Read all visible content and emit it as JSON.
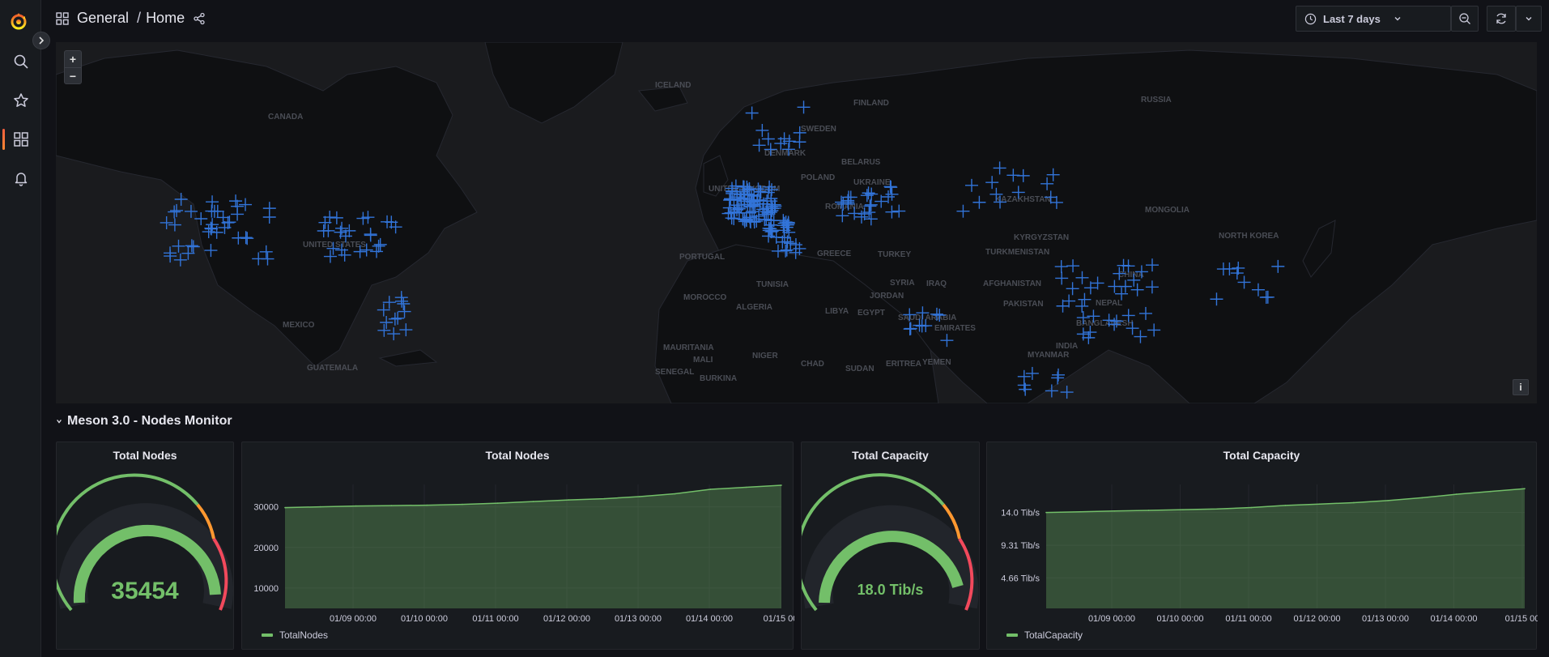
{
  "breadcrumb": {
    "folder": "General",
    "separator": "/",
    "dashboard": "Home"
  },
  "toolbar": {
    "time_range": "Last 7 days"
  },
  "sidebar": {
    "items": [
      {
        "icon": "search-icon"
      },
      {
        "icon": "star-icon"
      },
      {
        "icon": "dashboards-icon",
        "active": true
      },
      {
        "icon": "bell-icon"
      }
    ]
  },
  "map": {
    "zoom_in": "+",
    "zoom_out": "−",
    "info": "i",
    "labels": [
      {
        "text": "ICELAND"
      },
      {
        "text": "FINLAND"
      },
      {
        "text": "SWEDEN"
      },
      {
        "text": "RUSSIA"
      },
      {
        "text": "CANADA"
      },
      {
        "text": "UNITED KINGDOM"
      },
      {
        "text": "DENMARK"
      },
      {
        "text": "BELARUS"
      },
      {
        "text": "POLAND"
      },
      {
        "text": "UKRAINE"
      },
      {
        "text": "KAZAKHSTAN"
      },
      {
        "text": "MONGOLIA"
      },
      {
        "text": "ROMANIA"
      },
      {
        "text": "UNITED STATES"
      },
      {
        "text": "KYRGYZSTAN"
      },
      {
        "text": "TURKMENISTAN"
      },
      {
        "text": "TURKEY"
      },
      {
        "text": "GREECE"
      },
      {
        "text": "PORTUGAL"
      },
      {
        "text": "NORTH KOREA"
      },
      {
        "text": "CHINA"
      },
      {
        "text": "TUNISIA"
      },
      {
        "text": "SYRIA"
      },
      {
        "text": "IRAQ"
      },
      {
        "text": "AFGHANISTAN"
      },
      {
        "text": "JORDAN"
      },
      {
        "text": "MOROCCO"
      },
      {
        "text": "PAKISTAN"
      },
      {
        "text": "NEPAL"
      },
      {
        "text": "ALGERIA"
      },
      {
        "text": "LIBYA"
      },
      {
        "text": "EGYPT"
      },
      {
        "text": "SAUDI ARABIA"
      },
      {
        "text": "BANGLADESH"
      },
      {
        "text": "MEXICO"
      },
      {
        "text": "EMIRATES"
      },
      {
        "text": "INDIA"
      },
      {
        "text": "MAURITANIA"
      },
      {
        "text": "MALI"
      },
      {
        "text": "NIGER"
      },
      {
        "text": "CHAD"
      },
      {
        "text": "SUDAN"
      },
      {
        "text": "ERITREA"
      },
      {
        "text": "YEMEN"
      },
      {
        "text": "MYANMAR"
      },
      {
        "text": "GUATEMALA"
      },
      {
        "text": "SENEGAL"
      },
      {
        "text": "BURKINA"
      }
    ]
  },
  "row": {
    "title": "Meson 3.0 - Nodes Monitor"
  },
  "panels": {
    "nodes_gauge": {
      "title": "Total Nodes",
      "value": "35454"
    },
    "nodes_chart": {
      "title": "Total Nodes",
      "legend": "TotalNodes"
    },
    "capacity_gauge": {
      "title": "Total Capacity",
      "value": "18.0 Tib/s"
    },
    "capacity_chart": {
      "title": "Total Capacity",
      "legend": "TotalCapacity"
    }
  },
  "colors": {
    "series": "#73bf69",
    "marker": "#3274d9",
    "gauge_warn": "#ff9830",
    "gauge_crit": "#f2495c"
  },
  "chart_data": [
    {
      "type": "area",
      "title": "Total Nodes",
      "series": [
        {
          "name": "TotalNodes",
          "x": [
            "01/08 12:00",
            "01/09 00:00",
            "01/09 12:00",
            "01/10 00:00",
            "01/10 12:00",
            "01/11 00:00",
            "01/11 12:00",
            "01/12 00:00",
            "01/12 12:00",
            "01/13 00:00",
            "01/13 12:00",
            "01/14 00:00",
            "01/14 12:00",
            "01/15 00:00",
            "01/15 06:00"
          ],
          "values": [
            29800,
            30000,
            30200,
            30300,
            30400,
            30600,
            30900,
            31300,
            31700,
            32000,
            32500,
            33200,
            34300,
            34800,
            35300
          ]
        }
      ],
      "x_ticks": [
        "01/09 00:00",
        "01/10 00:00",
        "01/11 00:00",
        "01/12 00:00",
        "01/13 00:00",
        "01/14 00:00",
        "01/15 00"
      ],
      "y_ticks": [
        "10000",
        "20000",
        "30000"
      ],
      "ylim": [
        5000,
        35500
      ]
    },
    {
      "type": "area",
      "title": "Total Capacity",
      "series": [
        {
          "name": "TotalCapacity",
          "x": [
            "01/08 12:00",
            "01/09 00:00",
            "01/09 12:00",
            "01/10 00:00",
            "01/10 12:00",
            "01/11 00:00",
            "01/11 12:00",
            "01/12 00:00",
            "01/12 12:00",
            "01/13 00:00",
            "01/13 12:00",
            "01/14 00:00",
            "01/14 12:00",
            "01/15 00:00",
            "01/15 06:00"
          ],
          "values": [
            14.0,
            14.1,
            14.2,
            14.3,
            14.4,
            14.5,
            14.7,
            15.0,
            15.2,
            15.4,
            15.7,
            16.1,
            16.6,
            17.0,
            17.4
          ]
        }
      ],
      "x_ticks": [
        "01/09 00:00",
        "01/10 00:00",
        "01/11 00:00",
        "01/12 00:00",
        "01/13 00:00",
        "01/14 00:00",
        "01/15 00"
      ],
      "y_ticks": [
        "4.66 Tib/s",
        "9.31 Tib/s",
        "14.0 Tib/s"
      ],
      "ylim": [
        0.3,
        18.0
      ]
    }
  ]
}
